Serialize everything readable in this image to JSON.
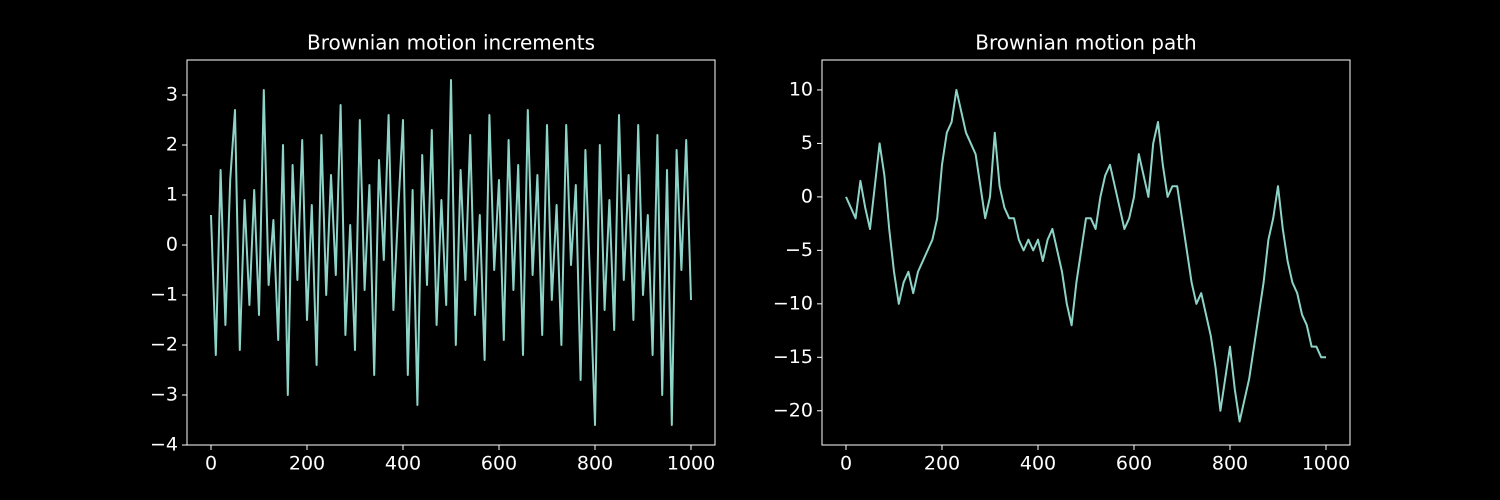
{
  "chart_data": [
    {
      "type": "line",
      "title": "Brownian motion increments",
      "color": "#8dd3c7",
      "x": [
        0,
        10,
        20,
        30,
        40,
        50,
        60,
        70,
        80,
        90,
        100,
        110,
        120,
        130,
        140,
        150,
        160,
        170,
        180,
        190,
        200,
        210,
        220,
        230,
        240,
        250,
        260,
        270,
        280,
        290,
        300,
        310,
        320,
        330,
        340,
        350,
        360,
        370,
        380,
        390,
        400,
        410,
        420,
        430,
        440,
        450,
        460,
        470,
        480,
        490,
        500,
        510,
        520,
        530,
        540,
        550,
        560,
        570,
        580,
        590,
        600,
        610,
        620,
        630,
        640,
        650,
        660,
        670,
        680,
        690,
        700,
        710,
        720,
        730,
        740,
        750,
        760,
        770,
        780,
        790,
        800,
        810,
        820,
        830,
        840,
        850,
        860,
        870,
        880,
        890,
        900,
        910,
        920,
        930,
        940,
        950,
        960,
        970,
        980,
        990,
        1000
      ],
      "values": [
        0.6,
        -2.2,
        1.5,
        -1.6,
        1.3,
        2.7,
        -2.1,
        0.9,
        -1.2,
        1.1,
        -1.4,
        3.1,
        -0.8,
        0.5,
        -1.9,
        2.0,
        -3.0,
        1.6,
        -0.7,
        2.1,
        -1.5,
        0.8,
        -2.4,
        2.2,
        -1.0,
        1.4,
        -0.6,
        2.8,
        -1.8,
        0.4,
        -2.1,
        2.5,
        -0.9,
        1.2,
        -2.6,
        1.7,
        -0.3,
        2.6,
        -1.3,
        0.7,
        2.5,
        -2.6,
        1.1,
        -3.2,
        1.8,
        -0.8,
        2.3,
        -1.6,
        0.9,
        -1.2,
        3.3,
        -2.0,
        1.5,
        -0.7,
        2.2,
        -1.4,
        0.6,
        -2.3,
        2.6,
        -0.5,
        1.3,
        -1.9,
        2.1,
        -0.9,
        1.6,
        -2.2,
        2.7,
        -0.6,
        1.4,
        -1.8,
        2.4,
        -1.1,
        0.8,
        -2.0,
        2.4,
        -0.4,
        1.2,
        -2.7,
        1.9,
        -0.8,
        -3.6,
        2.0,
        -1.3,
        0.9,
        -1.7,
        2.6,
        -0.7,
        1.4,
        -1.5,
        2.4,
        -1.0,
        0.6,
        -2.2,
        2.2,
        -3.0,
        1.5,
        -3.6,
        1.9,
        -0.5,
        2.1,
        -1.1
      ],
      "xlim": [
        -50,
        1050
      ],
      "ylim": [
        -4.0,
        3.7
      ],
      "xticks": [
        0,
        200,
        400,
        600,
        800,
        1000
      ],
      "yticks": [
        {
          "value": -4,
          "label": "−4"
        },
        {
          "value": -3,
          "label": "−3"
        },
        {
          "value": -2,
          "label": "−2"
        },
        {
          "value": -1,
          "label": "−1"
        },
        0,
        1,
        2,
        3
      ]
    },
    {
      "type": "line",
      "title": "Brownian motion path",
      "color": "#8dd3c7",
      "x": [
        0,
        10,
        20,
        30,
        40,
        50,
        60,
        70,
        80,
        90,
        100,
        110,
        120,
        130,
        140,
        150,
        160,
        170,
        180,
        190,
        200,
        210,
        220,
        230,
        240,
        250,
        260,
        270,
        280,
        290,
        300,
        310,
        320,
        330,
        340,
        350,
        360,
        370,
        380,
        390,
        400,
        410,
        420,
        430,
        440,
        450,
        460,
        470,
        480,
        490,
        500,
        510,
        520,
        530,
        540,
        550,
        560,
        570,
        580,
        590,
        600,
        610,
        620,
        630,
        640,
        650,
        660,
        670,
        680,
        690,
        700,
        710,
        720,
        730,
        740,
        750,
        760,
        770,
        780,
        790,
        800,
        810,
        820,
        830,
        840,
        850,
        860,
        870,
        880,
        890,
        900,
        910,
        920,
        930,
        940,
        950,
        960,
        970,
        980,
        990,
        1000
      ],
      "values": [
        0,
        -1,
        -2,
        1.5,
        -1,
        -3,
        1,
        5,
        2,
        -3,
        -7,
        -10,
        -8,
        -7,
        -9,
        -7,
        -6,
        -5,
        -4,
        -2,
        3,
        6,
        7,
        10,
        8,
        6,
        5,
        4,
        1,
        -2,
        0,
        6,
        1,
        -1,
        -2,
        -2,
        -4,
        -5,
        -4,
        -5,
        -4,
        -6,
        -4,
        -3,
        -5,
        -7,
        -10,
        -12,
        -8,
        -5,
        -2,
        -2,
        -3,
        0,
        2,
        3,
        1,
        -1,
        -3,
        -2,
        0,
        4,
        2,
        0,
        5,
        7,
        3,
        0,
        1,
        1,
        -2,
        -5,
        -8,
        -10,
        -9,
        -11,
        -13,
        -16,
        -20,
        -17,
        -14,
        -18,
        -21,
        -19,
        -17,
        -14,
        -11,
        -8,
        -4,
        -2,
        1,
        -3,
        -6,
        -8,
        -9,
        -11,
        -12,
        -14,
        -14,
        -15,
        -15
      ],
      "xlim": [
        -50,
        1050
      ],
      "ylim": [
        -23.2,
        12.8
      ],
      "xticks": [
        0,
        200,
        400,
        600,
        800,
        1000
      ],
      "yticks": [
        {
          "value": -20,
          "label": "−20"
        },
        {
          "value": -15,
          "label": "−15"
        },
        {
          "value": -10,
          "label": "−10"
        },
        {
          "value": -5,
          "label": "−5"
        },
        0,
        5,
        10
      ]
    }
  ]
}
